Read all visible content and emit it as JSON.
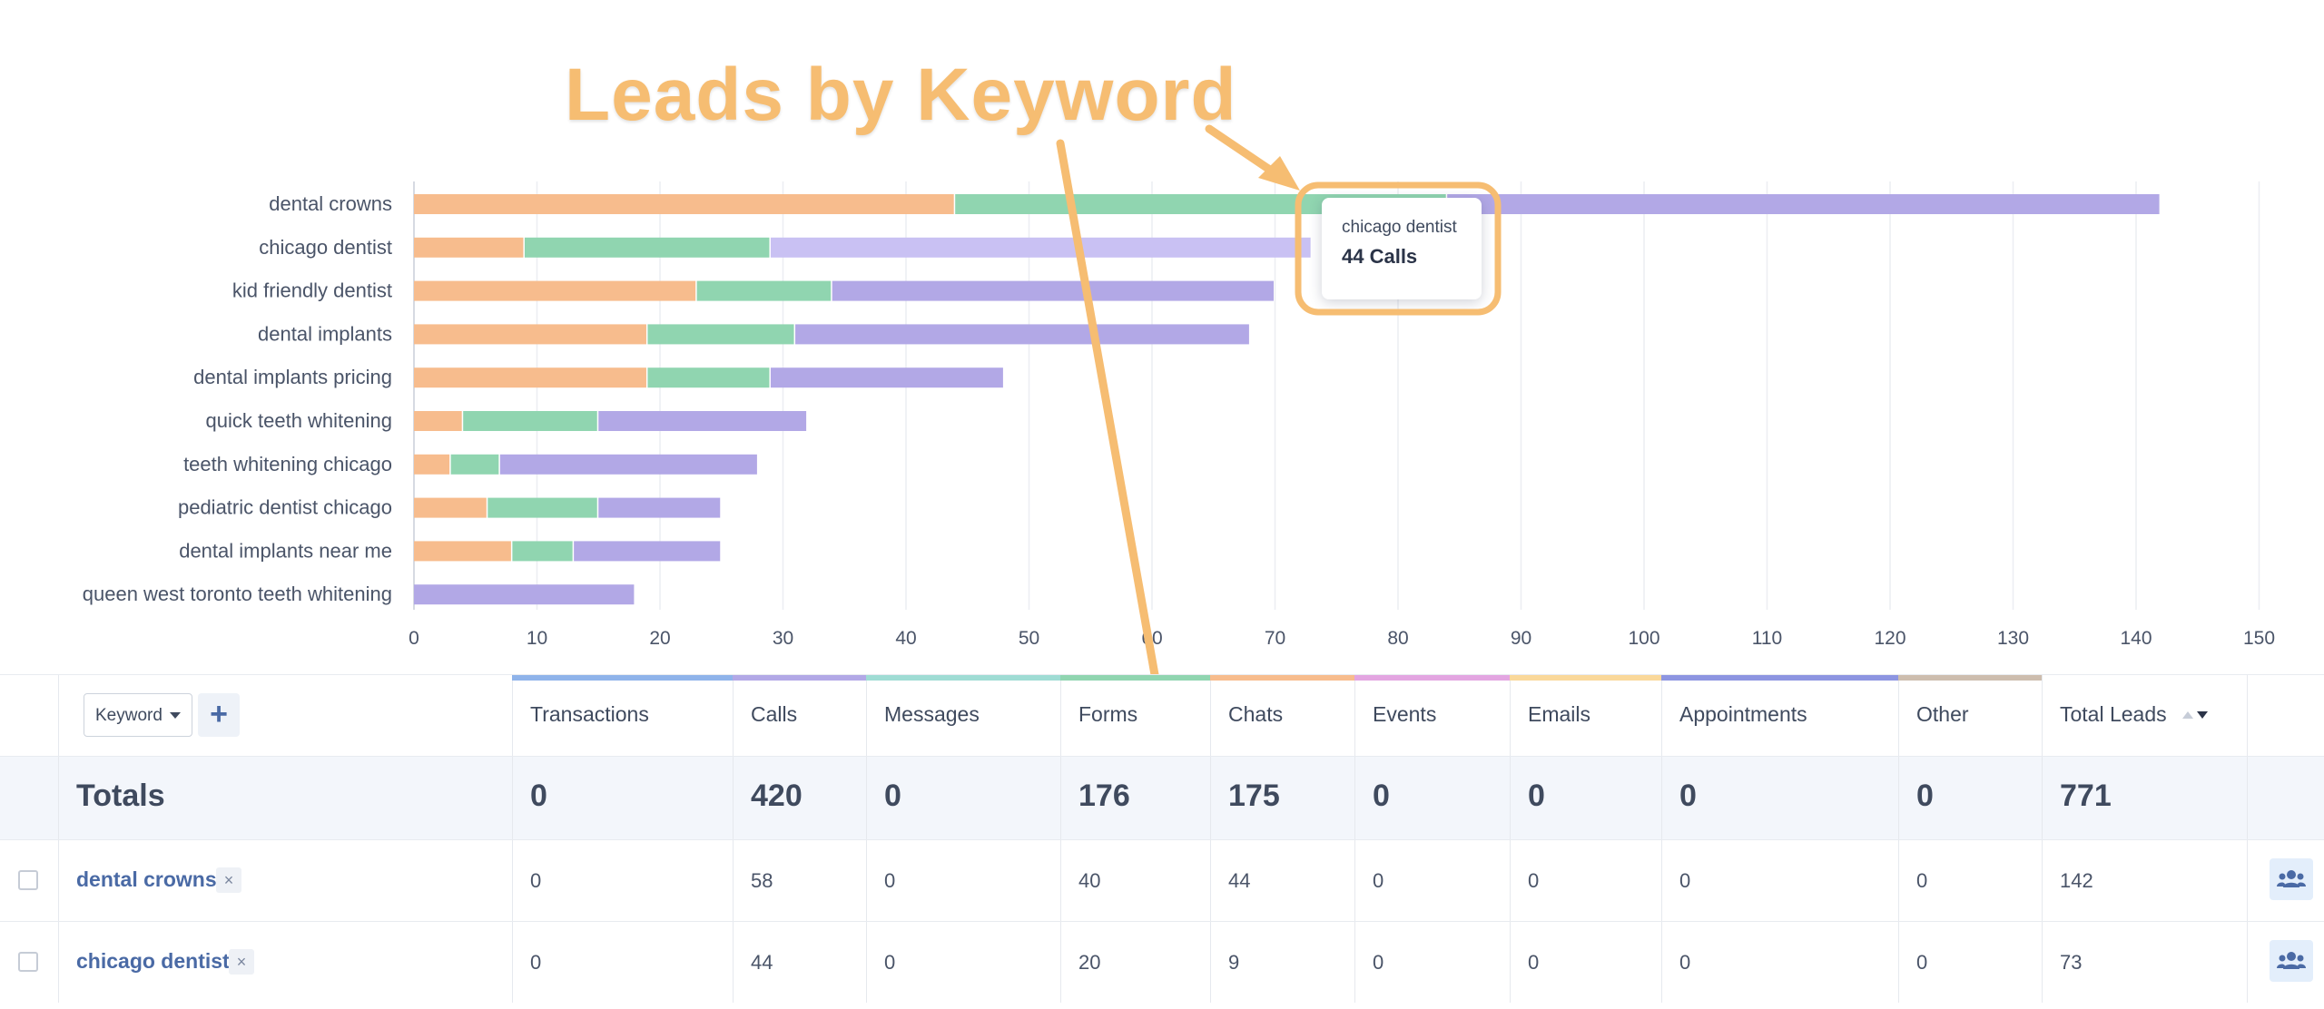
{
  "chart_data": {
    "type": "bar",
    "orientation": "horizontal",
    "stacked": true,
    "categories": [
      "dental crowns",
      "chicago dentist",
      "kid friendly dentist",
      "dental implants",
      "dental implants pricing",
      "quick teeth whitening",
      "teeth whitening chicago",
      "pediatric dentist chicago",
      "dental implants near me",
      "queen west toronto teeth whitening"
    ],
    "series": [
      {
        "color": "#f7bc8d",
        "values": [
          44,
          9,
          23,
          19,
          19,
          4,
          3,
          6,
          8,
          0
        ]
      },
      {
        "color": "#90d5b0",
        "values": [
          40,
          20,
          11,
          12,
          10,
          11,
          4,
          9,
          5,
          0
        ]
      },
      {
        "color": "#b2a8e6",
        "values": [
          58,
          44,
          36,
          37,
          19,
          17,
          21,
          10,
          12,
          18
        ]
      }
    ],
    "xlim": [
      0,
      150
    ],
    "xticks": [
      0,
      10,
      20,
      30,
      40,
      50,
      60,
      70,
      80,
      90,
      100,
      110,
      120,
      130,
      140,
      150
    ],
    "grid": true,
    "highlight": {
      "category": "chicago dentist",
      "series_index": 2,
      "color": "#c9c1f3"
    }
  },
  "tooltip": {
    "title": "chicago dentist",
    "value": "44 Calls"
  },
  "annotation": {
    "title": "Leads by Keyword",
    "color": "#f6bd72"
  },
  "toolbar": {
    "keyword_select_label": "Keyword",
    "add_label": "+"
  },
  "table": {
    "columns": [
      {
        "label": "Transactions",
        "color": "#8fb3ea"
      },
      {
        "label": "Calls",
        "color": "#b2a8e6"
      },
      {
        "label": "Messages",
        "color": "#9fdcd4"
      },
      {
        "label": "Forms",
        "color": "#90d5b0"
      },
      {
        "label": "Chats",
        "color": "#f7bc8d"
      },
      {
        "label": "Events",
        "color": "#e3a5e1"
      },
      {
        "label": "Emails",
        "color": "#fad89a"
      },
      {
        "label": "Appointments",
        "color": "#8d95e1"
      },
      {
        "label": "Other",
        "color": "#cdbdae"
      },
      {
        "label": "Total Leads",
        "color": ""
      }
    ],
    "totals_label": "Totals",
    "totals": [
      "0",
      "420",
      "0",
      "176",
      "175",
      "0",
      "0",
      "0",
      "0",
      "771"
    ],
    "rows": [
      {
        "keyword": "dental crowns",
        "values": [
          "0",
          "58",
          "0",
          "40",
          "44",
          "0",
          "0",
          "0",
          "0",
          "142"
        ]
      },
      {
        "keyword": "chicago dentist",
        "values": [
          "0",
          "44",
          "0",
          "20",
          "9",
          "0",
          "0",
          "0",
          "0",
          "73"
        ]
      }
    ],
    "remove_label": "×"
  }
}
